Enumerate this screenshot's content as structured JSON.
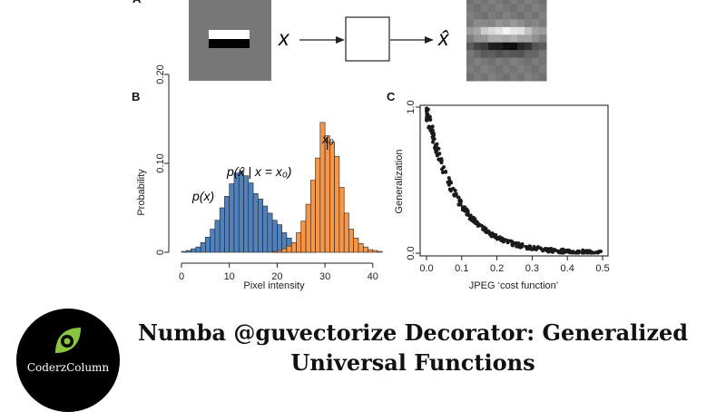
{
  "panel_a": {
    "letter": "A",
    "input_label": "x",
    "output_label": "x̂"
  },
  "chart_data": [
    {
      "type": "bar",
      "panel": "B",
      "xlabel": "Pixel intensity",
      "ylabel": "Probability",
      "xlim": [
        0,
        43
      ],
      "ylim": [
        0,
        0.24
      ],
      "xticks": [
        0,
        10,
        20,
        30,
        40
      ],
      "yticks": [
        0,
        0.1,
        0.2
      ],
      "ytick_labels": [
        "0",
        "0.10",
        "0.20"
      ],
      "bin_width": 1,
      "series": [
        {
          "name": "p(x)",
          "color": "#4f81bd",
          "bin_starts": [
            0,
            1,
            2,
            3,
            4,
            5,
            6,
            7,
            8,
            9,
            10,
            11,
            12,
            13,
            14,
            15,
            16,
            17,
            18,
            19,
            20,
            21,
            22,
            23,
            24,
            25,
            26,
            27
          ],
          "values": [
            0.001,
            0.002,
            0.004,
            0.006,
            0.011,
            0.017,
            0.026,
            0.036,
            0.05,
            0.063,
            0.077,
            0.089,
            0.091,
            0.086,
            0.078,
            0.066,
            0.06,
            0.052,
            0.044,
            0.036,
            0.031,
            0.022,
            0.016,
            0.01,
            0.007,
            0.004,
            0.002,
            0.001
          ]
        },
        {
          "name": "p(x̂ | x = x₀)",
          "color": "#f79646",
          "bin_starts": [
            19,
            20,
            21,
            22,
            23,
            24,
            25,
            26,
            27,
            28,
            29,
            30,
            31,
            32,
            33,
            34,
            35,
            36,
            37,
            38,
            39,
            40,
            41
          ],
          "values": [
            0.001,
            0.002,
            0.004,
            0.007,
            0.011,
            0.022,
            0.035,
            0.054,
            0.081,
            0.106,
            0.146,
            0.131,
            0.124,
            0.108,
            0.073,
            0.044,
            0.026,
            0.016,
            0.01,
            0.006,
            0.003,
            0.002,
            0.001
          ]
        }
      ],
      "annotations": [
        {
          "text": "p(x)"
        },
        {
          "text": "p(x̂ | x = x₀)"
        },
        {
          "text": "x₀",
          "x": 30.5
        }
      ]
    },
    {
      "type": "scatter",
      "panel": "C",
      "xlabel": "JPEG ‘cost function’",
      "ylabel": "Generalization",
      "xlim": [
        0,
        0.5
      ],
      "ylim": [
        0,
        1.0
      ],
      "xticks": [
        0.0,
        0.1,
        0.2,
        0.3,
        0.4,
        0.5
      ],
      "xtick_labels": [
        "0.0",
        "0.1",
        "0.2",
        "0.3",
        "0.4",
        "0.5"
      ],
      "yticks": [
        0.0,
        1.0
      ],
      "ytick_labels": [
        "0.0",
        "1.0"
      ],
      "point_count": 280,
      "trend": {
        "form": "exponential decay",
        "y0": 0.98,
        "rate": 11
      },
      "points": [
        [
          0.002,
          0.97
        ],
        [
          0.008,
          0.95
        ],
        [
          0.012,
          0.9
        ],
        [
          0.02,
          0.86
        ],
        [
          0.03,
          0.74
        ],
        [
          0.045,
          0.6
        ],
        [
          0.06,
          0.52
        ],
        [
          0.08,
          0.44
        ],
        [
          0.1,
          0.35
        ],
        [
          0.13,
          0.25
        ],
        [
          0.16,
          0.18
        ],
        [
          0.2,
          0.11
        ],
        [
          0.25,
          0.07
        ],
        [
          0.3,
          0.04
        ],
        [
          0.35,
          0.02
        ],
        [
          0.4,
          0.01
        ],
        [
          0.45,
          0.005
        ],
        [
          0.49,
          0.002
        ]
      ]
    }
  ],
  "logo": {
    "text": "CoderzColumn",
    "icon": "leaf-icon",
    "icon_color": "#8bc53f"
  },
  "article": {
    "title_line1": "Numba @guvectorize Decorator: Generalized",
    "title_line2": "Universal Functions"
  }
}
